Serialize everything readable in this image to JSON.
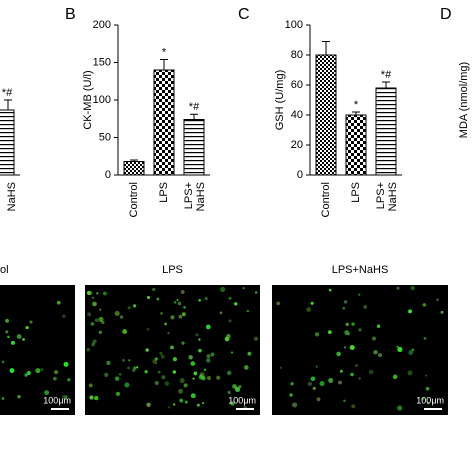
{
  "chart_data": [
    {
      "type": "bar",
      "panel": "B",
      "ylabel": "CK-MB (U/l)",
      "categories": [
        "Control",
        "LPS",
        [
          "LPS+",
          "NaHS"
        ]
      ],
      "values": [
        18,
        140,
        74
      ],
      "errors": [
        2,
        14,
        7
      ],
      "annotations": [
        null,
        "*",
        "*#"
      ],
      "patterns": [
        "check",
        "dense",
        "stripes"
      ],
      "ylim": [
        0,
        200
      ],
      "yticks": [
        0,
        50,
        100,
        150,
        200
      ]
    },
    {
      "type": "bar",
      "panel": "C",
      "ylabel": "GSH (U/mg)",
      "categories": [
        "Control",
        "LPS",
        [
          "LPS+",
          "NaHS"
        ]
      ],
      "values": [
        80,
        40,
        58
      ],
      "errors": [
        9,
        2,
        4
      ],
      "annotations": [
        null,
        "*",
        "*#"
      ],
      "patterns": [
        "check",
        "dense",
        "stripes"
      ],
      "ylim": [
        0,
        100
      ],
      "yticks": [
        0,
        20,
        40,
        60,
        80,
        100
      ]
    }
  ],
  "panel_a_fragments": {
    "annotation": "*#",
    "category": "NaHS"
  },
  "panel_d": {
    "label": "D",
    "ylabel": "MDA (nmol/mg)"
  },
  "images": [
    {
      "title": "ol",
      "scale": "100μm"
    },
    {
      "title": "LPS",
      "scale": "100μm"
    },
    {
      "title": "LPS+NaHS",
      "scale": "100μm"
    }
  ]
}
